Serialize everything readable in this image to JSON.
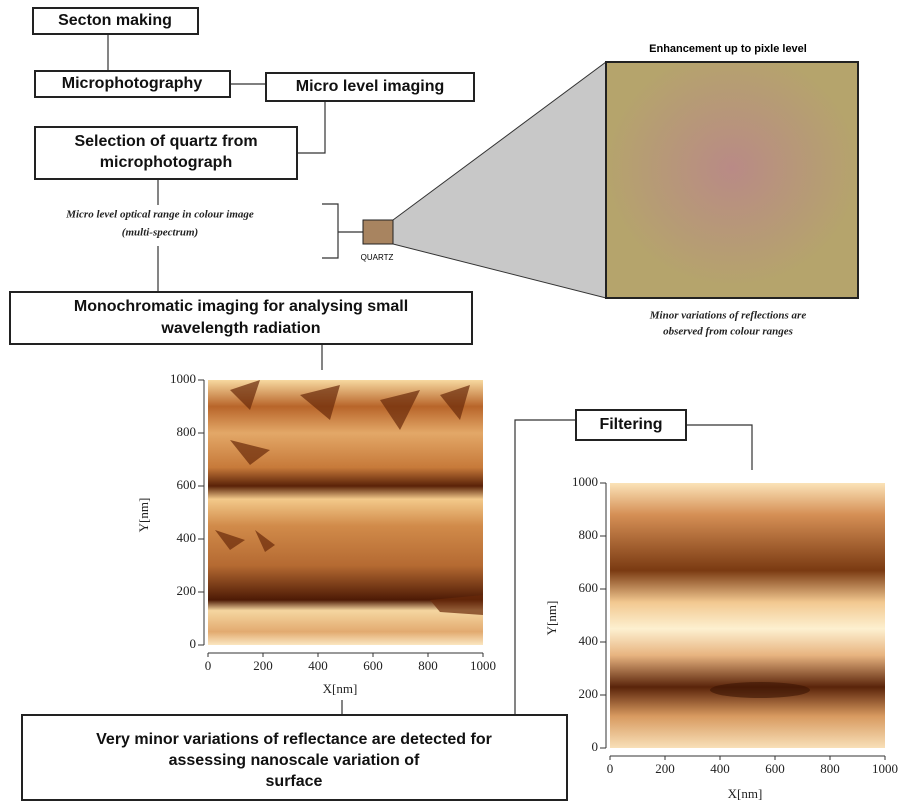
{
  "boxes": {
    "section": "Secton making",
    "micro_photo": "Microphotography",
    "micro_imaging": "Micro level imaging",
    "selection": [
      "Selection of quartz from",
      "microphotograph"
    ],
    "mono": [
      "Monochromatic imaging for analysing small",
      "wavelength radiation"
    ],
    "filtering": "Filtering",
    "result": [
      "Very minor variations of reflectance are detected for",
      "assessing nanoscale variation of",
      "surface"
    ]
  },
  "optical_range": [
    "Micro level optical range in colour image",
    "(multi-spectrum)"
  ],
  "quartz_label": "QUARTZ",
  "enhancement_title": "Enhancement up to pixle level",
  "enhancement_caption": [
    "Minor variations of reflections are",
    "observed from colour ranges"
  ],
  "plots": [
    {
      "x_label": "X[nm]",
      "y_label": "Y[nm]",
      "xlim": [
        0,
        1000
      ],
      "ylim": [
        0,
        1000
      ],
      "xticks": [
        0,
        200,
        400,
        600,
        800,
        1000
      ],
      "yticks": [
        0,
        200,
        400,
        600,
        800,
        1000
      ]
    },
    {
      "x_label": "X[nm]",
      "y_label": "Y[nm]",
      "xlim": [
        0,
        1000
      ],
      "ylim": [
        0,
        1000
      ],
      "xticks": [
        0,
        200,
        400,
        600,
        800,
        1000
      ],
      "yticks": [
        0,
        200,
        400,
        600,
        800,
        1000
      ]
    }
  ]
}
